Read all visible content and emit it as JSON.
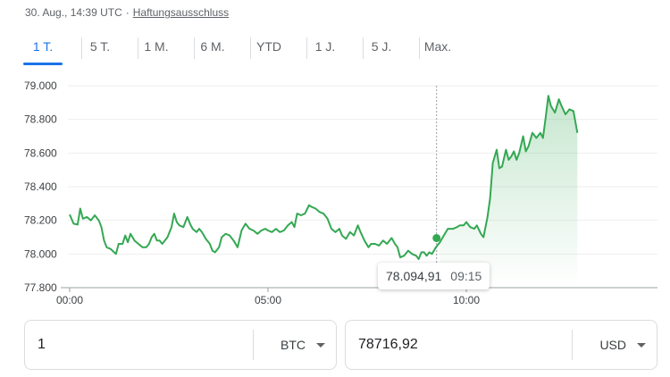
{
  "header": {
    "timestamp": "30. Aug., 14:39 UTC",
    "separator": "·",
    "disclaimer": "Haftungsausschluss"
  },
  "tabs": [
    {
      "label": "1 T.",
      "selected": true
    },
    {
      "label": "5 T.",
      "selected": false
    },
    {
      "label": "1 M.",
      "selected": false
    },
    {
      "label": "6 M.",
      "selected": false
    },
    {
      "label": "YTD",
      "selected": false
    },
    {
      "label": "1 J.",
      "selected": false
    },
    {
      "label": "5 J.",
      "selected": false
    },
    {
      "label": "Max.",
      "selected": false
    }
  ],
  "colors": {
    "accent": "#1a73e8",
    "line": "#34a853",
    "text": "#3c4043",
    "muted": "#5f6368"
  },
  "chart_data": {
    "type": "line",
    "ylim": [
      77800,
      79000
    ],
    "y_ticks": [
      79000,
      78800,
      78600,
      78400,
      78200,
      78000,
      77800
    ],
    "y_tick_labels": [
      "79.000",
      "78.800",
      "78.600",
      "78.400",
      "78.200",
      "78.000",
      "77.800"
    ],
    "x_ticks": [
      0,
      300,
      600
    ],
    "x_tick_labels": [
      "00:00",
      "05:00",
      "10:00"
    ],
    "x_unit": "minutes after 00:00 UTC",
    "grid": true,
    "series": [
      {
        "points": [
          [
            0,
            78235
          ],
          [
            6,
            78180
          ],
          [
            12,
            78175
          ],
          [
            16,
            78270
          ],
          [
            20,
            78210
          ],
          [
            26,
            78220
          ],
          [
            32,
            78200
          ],
          [
            38,
            78230
          ],
          [
            44,
            78200
          ],
          [
            48,
            78160
          ],
          [
            52,
            78080
          ],
          [
            56,
            78040
          ],
          [
            62,
            78030
          ],
          [
            66,
            78015
          ],
          [
            70,
            78000
          ],
          [
            74,
            78060
          ],
          [
            80,
            78060
          ],
          [
            84,
            78110
          ],
          [
            88,
            78070
          ],
          [
            92,
            78120
          ],
          [
            98,
            78080
          ],
          [
            104,
            78060
          ],
          [
            110,
            78040
          ],
          [
            116,
            78040
          ],
          [
            120,
            78060
          ],
          [
            124,
            78100
          ],
          [
            128,
            78120
          ],
          [
            132,
            78080
          ],
          [
            136,
            78080
          ],
          [
            140,
            78060
          ],
          [
            148,
            78100
          ],
          [
            154,
            78160
          ],
          [
            158,
            78240
          ],
          [
            162,
            78190
          ],
          [
            166,
            78170
          ],
          [
            172,
            78160
          ],
          [
            178,
            78220
          ],
          [
            182,
            78180
          ],
          [
            186,
            78150
          ],
          [
            192,
            78130
          ],
          [
            196,
            78150
          ],
          [
            200,
            78130
          ],
          [
            206,
            78090
          ],
          [
            212,
            78060
          ],
          [
            216,
            78020
          ],
          [
            220,
            78010
          ],
          [
            226,
            78040
          ],
          [
            230,
            78100
          ],
          [
            236,
            78120
          ],
          [
            242,
            78110
          ],
          [
            248,
            78080
          ],
          [
            254,
            78040
          ],
          [
            260,
            78140
          ],
          [
            266,
            78180
          ],
          [
            272,
            78150
          ],
          [
            278,
            78140
          ],
          [
            284,
            78120
          ],
          [
            290,
            78140
          ],
          [
            296,
            78150
          ],
          [
            300,
            78140
          ],
          [
            306,
            78130
          ],
          [
            312,
            78150
          ],
          [
            318,
            78130
          ],
          [
            324,
            78140
          ],
          [
            330,
            78170
          ],
          [
            336,
            78190
          ],
          [
            340,
            78160
          ],
          [
            344,
            78240
          ],
          [
            350,
            78230
          ],
          [
            356,
            78240
          ],
          [
            362,
            78290
          ],
          [
            366,
            78280
          ],
          [
            372,
            78270
          ],
          [
            378,
            78250
          ],
          [
            384,
            78240
          ],
          [
            390,
            78210
          ],
          [
            396,
            78150
          ],
          [
            402,
            78130
          ],
          [
            408,
            78150
          ],
          [
            412,
            78110
          ],
          [
            418,
            78090
          ],
          [
            424,
            78130
          ],
          [
            430,
            78110
          ],
          [
            436,
            78170
          ],
          [
            440,
            78130
          ],
          [
            446,
            78080
          ],
          [
            452,
            78040
          ],
          [
            456,
            78060
          ],
          [
            462,
            78060
          ],
          [
            468,
            78050
          ],
          [
            474,
            78080
          ],
          [
            480,
            78060
          ],
          [
            487,
            78095
          ],
          [
            492,
            78060
          ],
          [
            496,
            78040
          ],
          [
            500,
            77980
          ],
          [
            506,
            77990
          ],
          [
            512,
            78020
          ],
          [
            518,
            78000
          ],
          [
            524,
            77990
          ],
          [
            528,
            77970
          ],
          [
            532,
            78010
          ],
          [
            536,
            78010
          ],
          [
            540,
            77990
          ],
          [
            544,
            78010
          ],
          [
            548,
            78000
          ],
          [
            554,
            78040
          ],
          [
            560,
            78070
          ],
          [
            566,
            78110
          ],
          [
            572,
            78150
          ],
          [
            580,
            78150
          ],
          [
            586,
            78160
          ],
          [
            590,
            78170
          ],
          [
            596,
            78170
          ],
          [
            600,
            78190
          ],
          [
            606,
            78160
          ],
          [
            612,
            78150
          ],
          [
            616,
            78170
          ],
          [
            622,
            78120
          ],
          [
            626,
            78100
          ],
          [
            632,
            78220
          ],
          [
            636,
            78330
          ],
          [
            640,
            78540
          ],
          [
            646,
            78620
          ],
          [
            650,
            78510
          ],
          [
            654,
            78520
          ],
          [
            660,
            78620
          ],
          [
            664,
            78560
          ],
          [
            668,
            78580
          ],
          [
            672,
            78610
          ],
          [
            676,
            78560
          ],
          [
            680,
            78600
          ],
          [
            686,
            78700
          ],
          [
            690,
            78610
          ],
          [
            694,
            78640
          ],
          [
            700,
            78720
          ],
          [
            706,
            78690
          ],
          [
            712,
            78720
          ],
          [
            716,
            78690
          ],
          [
            720,
            78810
          ],
          [
            724,
            78940
          ],
          [
            728,
            78880
          ],
          [
            734,
            78840
          ],
          [
            740,
            78920
          ],
          [
            744,
            78880
          ],
          [
            750,
            78830
          ],
          [
            756,
            78860
          ],
          [
            762,
            78850
          ],
          [
            768,
            78720
          ]
        ]
      }
    ],
    "hover": {
      "value_label": "78.094,91",
      "time_label": "09:15",
      "x": 555,
      "y": 78095
    }
  },
  "converter": {
    "from_amount": "1",
    "from_currency": "BTC",
    "to_amount": "78716,92",
    "to_currency": "USD"
  }
}
